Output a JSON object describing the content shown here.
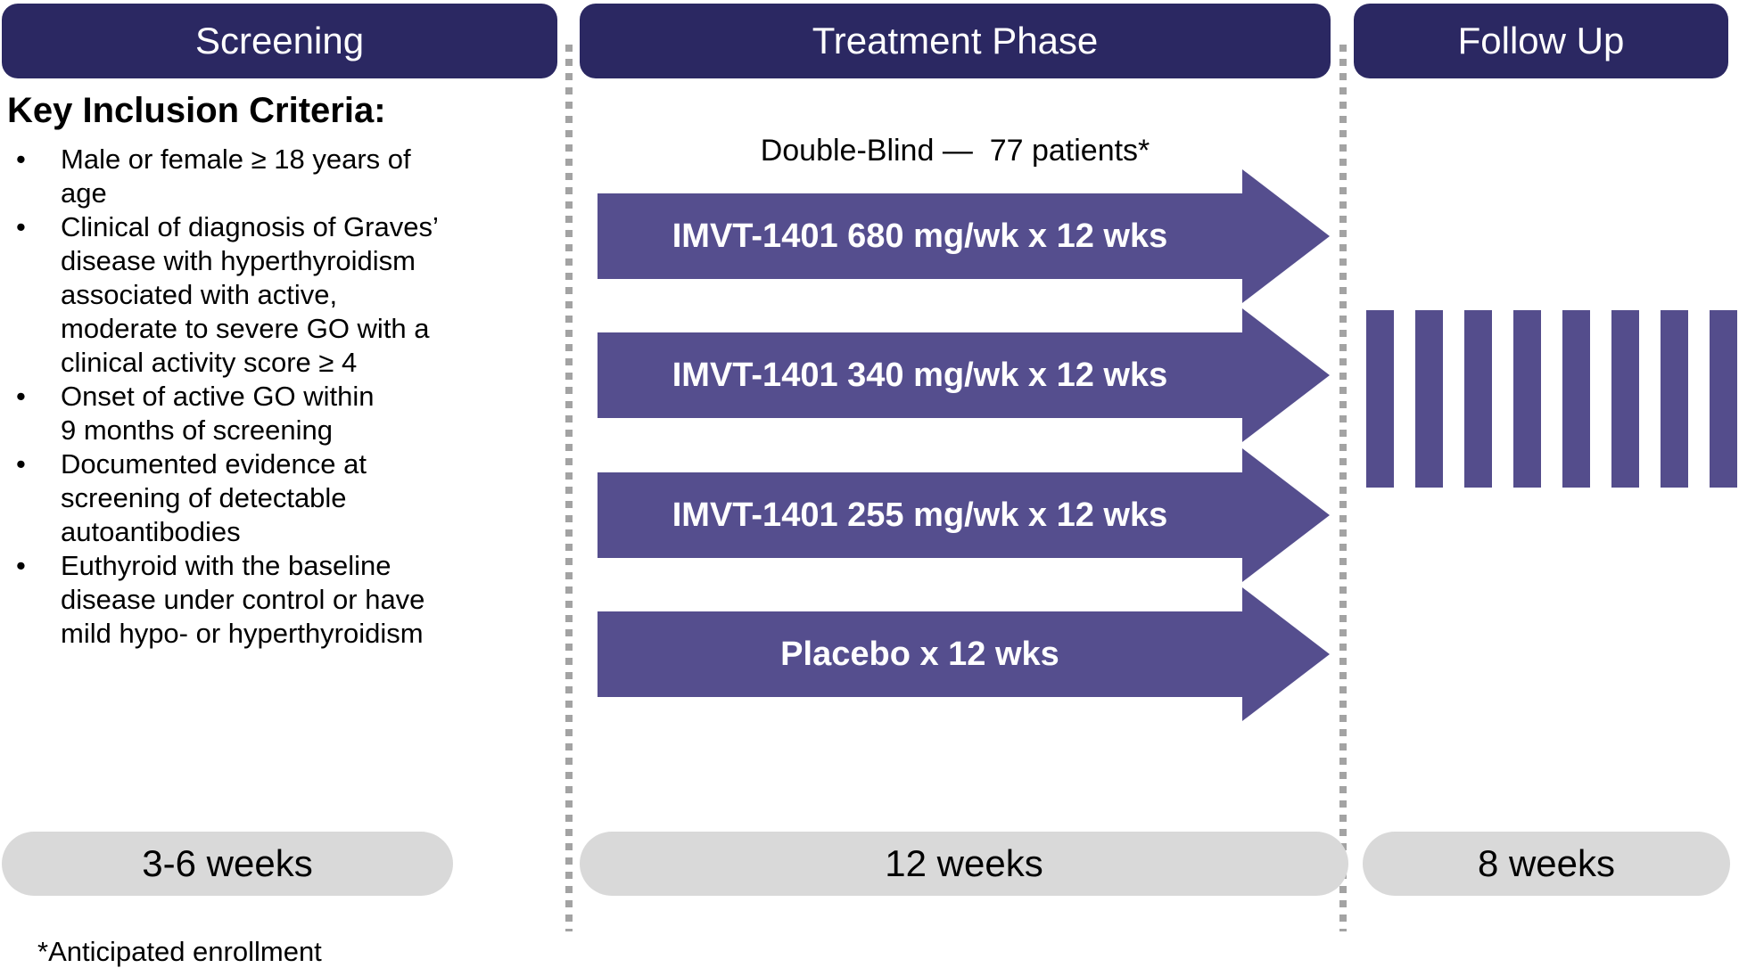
{
  "columns": {
    "screening": {
      "header": "Screening",
      "duration": "3-6 weeks"
    },
    "treatment": {
      "header": "Treatment Phase",
      "duration": "12 weeks",
      "subtitle": "Double-Blind —  77 patients*"
    },
    "followup": {
      "header": "Follow Up",
      "duration": "8 weeks"
    }
  },
  "inclusion": {
    "heading": "Key Inclusion Criteria:",
    "bullet_glyph": "•",
    "bullets": [
      "Male or female ≥ 18 years of\nage",
      "Clinical of diagnosis of Graves’\ndisease with hyperthyroidism\nassociated with active,\nmoderate to severe GO with a\nclinical activity score ≥ 4",
      "Onset of active GO within\n9 months of screening",
      "Documented evidence at\nscreening of detectable\nautoantibodies",
      "Euthyroid with the baseline\ndisease under control or have\nmild hypo- or hyperthyroidism"
    ]
  },
  "arms": [
    {
      "label": "IMVT-1401 680 mg/wk x 12 wks"
    },
    {
      "label": "IMVT-1401 340 mg/wk x 12 wks"
    },
    {
      "label": "IMVT-1401 255 mg/wk x 12 wks"
    },
    {
      "label": "Placebo x 12 wks"
    }
  ],
  "followup_bars": {
    "count": 8
  },
  "footnote": "*Anticipated enrollment",
  "colors": {
    "header_bg": "#2b2862",
    "arrow_fill": "#554e8e",
    "bar_fill": "#544d8c",
    "pill_bg": "#d9d9d9",
    "dash_color": "#a3a3a3",
    "header_text": "#ffffff",
    "body_text": "#000000"
  }
}
